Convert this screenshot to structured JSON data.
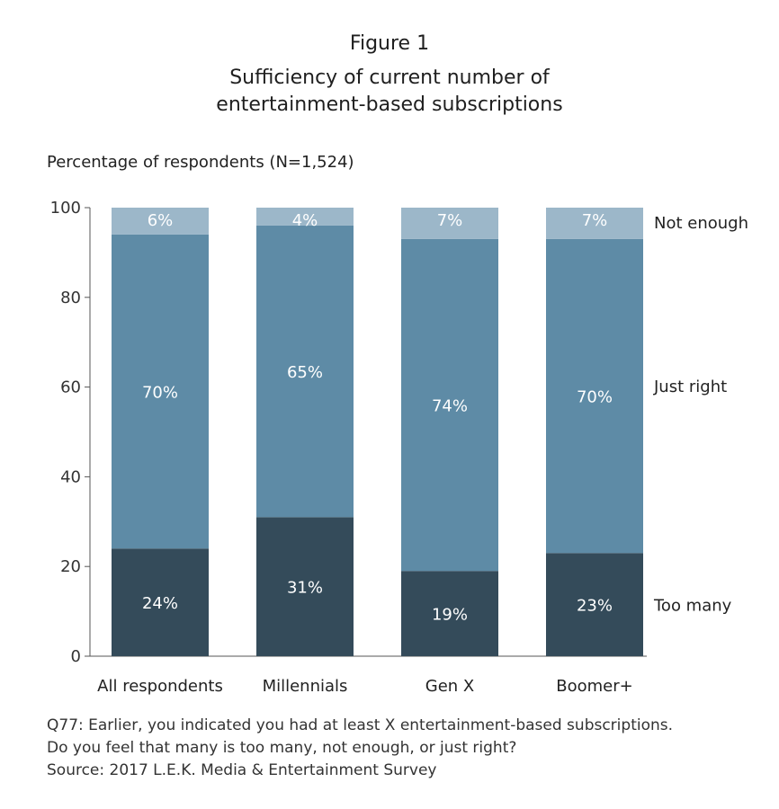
{
  "figure_label": "Figure 1",
  "title_lines": [
    "Sufficiency of current number of",
    "entertainment-based subscriptions"
  ],
  "footnote": {
    "q_line1": "Q77: Earlier, you indicated you had at least X entertainment-based subscriptions.",
    "q_line2": "Do you feel that many is too many, not enough, or just right?",
    "source": "Source: 2017 L.E.K. Media & Entertainment Survey"
  },
  "chart_data": {
    "type": "bar",
    "stacked": true,
    "title": "Sufficiency of current number of entertainment-based subscriptions",
    "ylabel": "Percentage of respondents (N=1,524)",
    "xlabel": "",
    "ylim": [
      0,
      100
    ],
    "yticks": [
      0,
      20,
      40,
      60,
      80,
      100
    ],
    "categories": [
      "All respondents",
      "Millennials",
      "Gen X",
      "Boomer+"
    ],
    "series": [
      {
        "name": "Too many",
        "values": [
          24,
          31,
          19,
          23
        ],
        "labels": [
          "24%",
          "31%",
          "19%",
          "23%"
        ],
        "color": "#344b5a"
      },
      {
        "name": "Just right",
        "values": [
          70,
          65,
          74,
          70
        ],
        "labels": [
          "70%",
          "65%",
          "74%",
          "70%"
        ],
        "color": "#5e8ba6"
      },
      {
        "name": "Not enough",
        "values": [
          6,
          4,
          7,
          7
        ],
        "labels": [
          "6%",
          "4%",
          "7%",
          "7%"
        ],
        "color": "#9cb7c9"
      }
    ],
    "legend_placement": "right, beside last bar",
    "grid": false
  }
}
